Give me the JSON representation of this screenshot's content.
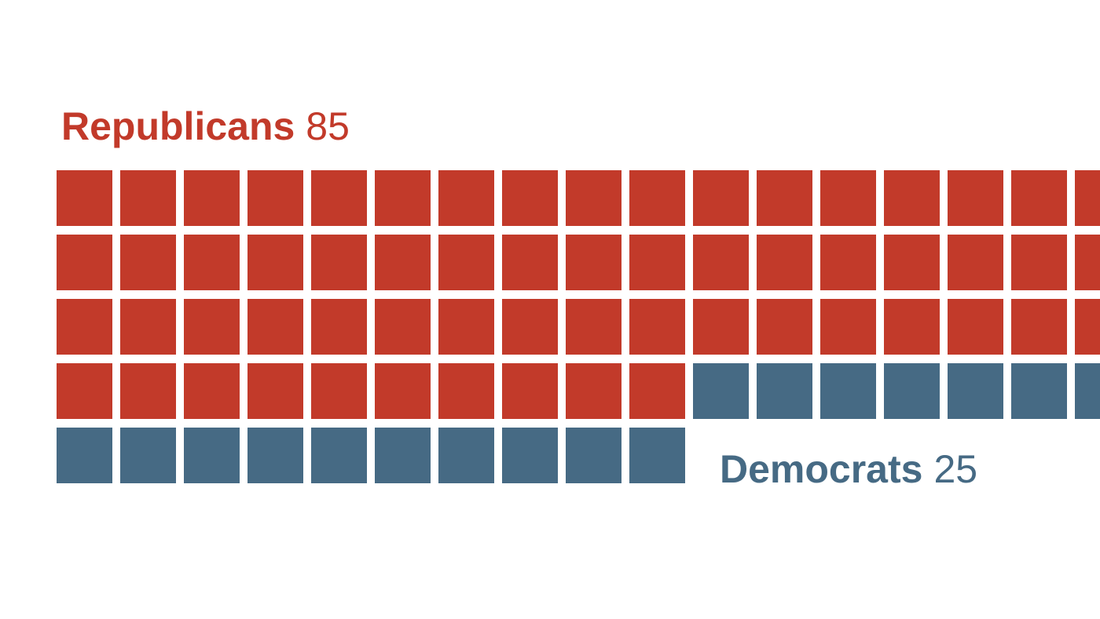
{
  "chart_data": {
    "type": "waffle",
    "series": [
      {
        "name": "Republicans",
        "color": "#c23a2a",
        "value": 85
      },
      {
        "name": "Democrats",
        "color": "#466a84",
        "value": 25
      }
    ]
  }
}
